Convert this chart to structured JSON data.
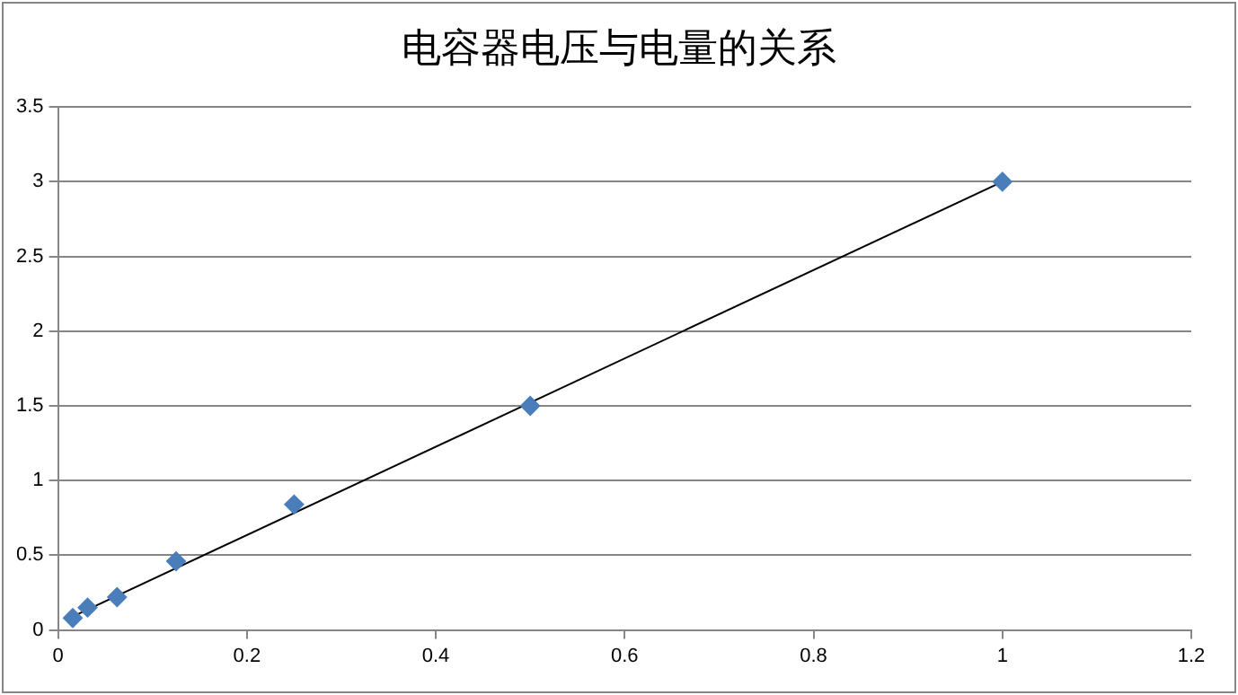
{
  "chart_data": {
    "type": "scatter",
    "title": "电容器电压与电量的关系",
    "series": [
      {
        "color": "#4a7ebb",
        "marker": "diamond",
        "x": [
          0.0156,
          0.0313,
          0.0625,
          0.125,
          0.25,
          0.5,
          1
        ],
        "values": [
          0.08,
          0.15,
          0.22,
          0.46,
          0.84,
          1.5,
          3.0
        ]
      },
      {
        "type": "line",
        "color": "#000000",
        "marker": "none",
        "x": [
          0.0156,
          1
        ],
        "values": [
          0.09,
          3.0
        ]
      }
    ],
    "xlim": [
      0,
      1.2
    ],
    "xticks": [
      0,
      0.2,
      0.4,
      0.6,
      0.8,
      1,
      1.2
    ],
    "ylim": [
      0,
      3.5
    ],
    "yticks": [
      0,
      0.5,
      1,
      1.5,
      2,
      2.5,
      3,
      3.5
    ],
    "grid": "y",
    "legend": false
  }
}
